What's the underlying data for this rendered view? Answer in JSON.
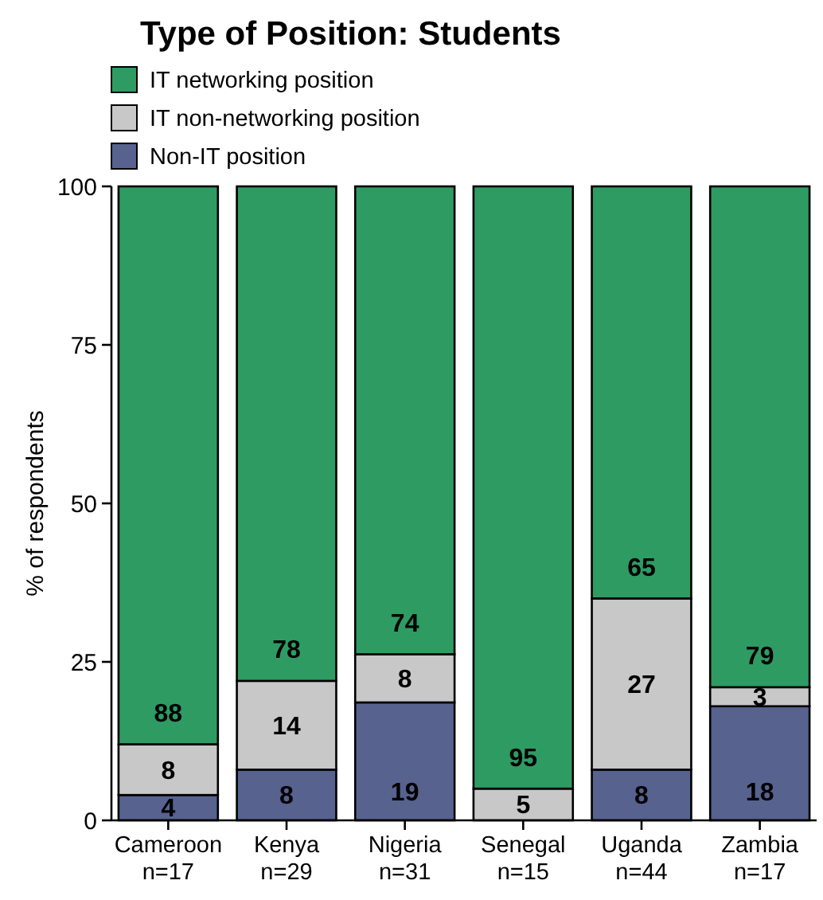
{
  "chart_data": {
    "type": "bar",
    "title": "Type of Position: Students",
    "ylabel": "% of respondents",
    "stacked": true,
    "legend": "top left",
    "grid": false,
    "categories": [
      "Cameroon\nn=17",
      "Kenya\nn=29",
      "Nigeria\nn=31",
      "Senegal\nn=15",
      "Uganda\nn=44",
      "Zambia\nn=17"
    ],
    "ylim": [
      0,
      100
    ],
    "yticks": [
      0,
      25,
      50,
      75,
      100
    ],
    "series": [
      {
        "name": "Non-IT position",
        "color": "#57628f",
        "values": [
          4,
          8,
          18.6,
          0,
          8,
          18
        ],
        "value_labels": [
          "4",
          "8",
          "19",
          null,
          "8",
          "18"
        ]
      },
      {
        "name": "IT non-networking position",
        "color": "#c8c8c8",
        "values": [
          8,
          14,
          7.6,
          5,
          27,
          3
        ],
        "value_labels": [
          "8",
          "14",
          "8",
          "5",
          "27",
          "3"
        ]
      },
      {
        "name": "IT networking position",
        "color": "#2e9b63",
        "values": [
          88,
          78,
          73.8,
          95,
          65,
          79
        ],
        "value_labels": [
          "88",
          "78",
          "74",
          "95",
          "65",
          "79"
        ]
      }
    ]
  }
}
